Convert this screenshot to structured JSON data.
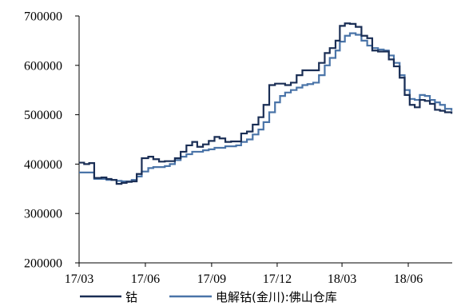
{
  "chart_data": {
    "type": "line",
    "title": "",
    "xlabel": "",
    "ylabel": "",
    "ylim": [
      200000,
      700000
    ],
    "xlim": [
      "2017-03-01",
      "2018-08-01"
    ],
    "grid": false,
    "legend_position": "bottom",
    "y_ticks": [
      {
        "value": 200000,
        "label": "200000"
      },
      {
        "value": 300000,
        "label": "300000"
      },
      {
        "value": 400000,
        "label": "400000"
      },
      {
        "value": 500000,
        "label": "500000"
      },
      {
        "value": 600000,
        "label": "600000"
      },
      {
        "value": 700000,
        "label": "700000"
      }
    ],
    "x_ticks": [
      {
        "value": "2017-03-01",
        "label": "17/03"
      },
      {
        "value": "2017-06-01",
        "label": "17/06"
      },
      {
        "value": "2017-09-01",
        "label": "17/09"
      },
      {
        "value": "2017-12-01",
        "label": "17/12"
      },
      {
        "value": "2018-03-01",
        "label": "18/03"
      },
      {
        "value": "2018-06-01",
        "label": "18/06"
      }
    ],
    "series": [
      {
        "name": "钴",
        "color": "#1a2e55",
        "points": [
          [
            "2017-03-01",
            403000
          ],
          [
            "2017-03-08",
            400000
          ],
          [
            "2017-03-15",
            402000
          ],
          [
            "2017-03-22",
            372000
          ],
          [
            "2017-04-01",
            373000
          ],
          [
            "2017-04-08",
            370000
          ],
          [
            "2017-04-15",
            368000
          ],
          [
            "2017-04-22",
            360000
          ],
          [
            "2017-04-29",
            362000
          ],
          [
            "2017-05-06",
            364000
          ],
          [
            "2017-05-13",
            365000
          ],
          [
            "2017-05-20",
            380000
          ],
          [
            "2017-05-27",
            412000
          ],
          [
            "2017-06-05",
            415000
          ],
          [
            "2017-06-12",
            410000
          ],
          [
            "2017-06-20",
            405000
          ],
          [
            "2017-06-28",
            406000
          ],
          [
            "2017-07-05",
            406000
          ],
          [
            "2017-07-12",
            412000
          ],
          [
            "2017-07-20",
            425000
          ],
          [
            "2017-07-28",
            438000
          ],
          [
            "2017-08-05",
            445000
          ],
          [
            "2017-08-12",
            435000
          ],
          [
            "2017-08-20",
            440000
          ],
          [
            "2017-08-28",
            447000
          ],
          [
            "2017-09-05",
            455000
          ],
          [
            "2017-09-12",
            452000
          ],
          [
            "2017-09-20",
            445000
          ],
          [
            "2017-09-28",
            446000
          ],
          [
            "2017-10-05",
            446000
          ],
          [
            "2017-10-12",
            462000
          ],
          [
            "2017-10-20",
            466000
          ],
          [
            "2017-10-28",
            480000
          ],
          [
            "2017-11-05",
            495000
          ],
          [
            "2017-11-12",
            520000
          ],
          [
            "2017-11-20",
            560000
          ],
          [
            "2017-11-28",
            563000
          ],
          [
            "2017-12-05",
            563000
          ],
          [
            "2017-12-12",
            560000
          ],
          [
            "2017-12-20",
            565000
          ],
          [
            "2017-12-28",
            580000
          ],
          [
            "2018-01-05",
            590000
          ],
          [
            "2018-01-12",
            590000
          ],
          [
            "2018-01-20",
            590000
          ],
          [
            "2018-01-28",
            605000
          ],
          [
            "2018-02-05",
            625000
          ],
          [
            "2018-02-12",
            635000
          ],
          [
            "2018-02-20",
            650000
          ],
          [
            "2018-02-26",
            680000
          ],
          [
            "2018-03-05",
            685000
          ],
          [
            "2018-03-12",
            684000
          ],
          [
            "2018-03-20",
            678000
          ],
          [
            "2018-03-28",
            660000
          ],
          [
            "2018-04-05",
            655000
          ],
          [
            "2018-04-12",
            630000
          ],
          [
            "2018-04-20",
            628000
          ],
          [
            "2018-04-28",
            628000
          ],
          [
            "2018-05-05",
            612000
          ],
          [
            "2018-05-12",
            598000
          ],
          [
            "2018-05-20",
            575000
          ],
          [
            "2018-05-27",
            540000
          ],
          [
            "2018-06-03",
            520000
          ],
          [
            "2018-06-10",
            515000
          ],
          [
            "2018-06-17",
            530000
          ],
          [
            "2018-06-24",
            528000
          ],
          [
            "2018-07-01",
            522000
          ],
          [
            "2018-07-08",
            510000
          ],
          [
            "2018-07-15",
            508000
          ],
          [
            "2018-07-22",
            505000
          ],
          [
            "2018-07-31",
            502000
          ]
        ]
      },
      {
        "name": "电解钴(金川):佛山仓库",
        "color": "#4a74a8",
        "points": [
          [
            "2017-03-01",
            383000
          ],
          [
            "2017-03-08",
            383000
          ],
          [
            "2017-03-15",
            383000
          ],
          [
            "2017-03-22",
            370000
          ],
          [
            "2017-04-01",
            370000
          ],
          [
            "2017-04-08",
            368000
          ],
          [
            "2017-04-15",
            368000
          ],
          [
            "2017-04-22",
            366000
          ],
          [
            "2017-04-29",
            365000
          ],
          [
            "2017-05-06",
            365000
          ],
          [
            "2017-05-13",
            368000
          ],
          [
            "2017-05-20",
            375000
          ],
          [
            "2017-05-27",
            385000
          ],
          [
            "2017-06-05",
            392000
          ],
          [
            "2017-06-12",
            394000
          ],
          [
            "2017-06-20",
            394000
          ],
          [
            "2017-06-28",
            396000
          ],
          [
            "2017-07-05",
            400000
          ],
          [
            "2017-07-12",
            408000
          ],
          [
            "2017-07-20",
            415000
          ],
          [
            "2017-07-28",
            420000
          ],
          [
            "2017-08-05",
            425000
          ],
          [
            "2017-08-12",
            425000
          ],
          [
            "2017-08-20",
            428000
          ],
          [
            "2017-08-28",
            430000
          ],
          [
            "2017-09-05",
            433000
          ],
          [
            "2017-09-12",
            433000
          ],
          [
            "2017-09-20",
            436000
          ],
          [
            "2017-09-28",
            436000
          ],
          [
            "2017-10-05",
            438000
          ],
          [
            "2017-10-12",
            445000
          ],
          [
            "2017-10-20",
            450000
          ],
          [
            "2017-10-28",
            460000
          ],
          [
            "2017-11-05",
            470000
          ],
          [
            "2017-11-12",
            485000
          ],
          [
            "2017-11-20",
            505000
          ],
          [
            "2017-11-28",
            525000
          ],
          [
            "2017-12-05",
            538000
          ],
          [
            "2017-12-12",
            545000
          ],
          [
            "2017-12-20",
            550000
          ],
          [
            "2017-12-28",
            555000
          ],
          [
            "2018-01-05",
            560000
          ],
          [
            "2018-01-12",
            562000
          ],
          [
            "2018-01-20",
            565000
          ],
          [
            "2018-01-28",
            580000
          ],
          [
            "2018-02-05",
            600000
          ],
          [
            "2018-02-12",
            615000
          ],
          [
            "2018-02-20",
            630000
          ],
          [
            "2018-02-26",
            648000
          ],
          [
            "2018-03-05",
            660000
          ],
          [
            "2018-03-12",
            665000
          ],
          [
            "2018-03-20",
            662000
          ],
          [
            "2018-03-28",
            650000
          ],
          [
            "2018-04-05",
            640000
          ],
          [
            "2018-04-12",
            635000
          ],
          [
            "2018-04-20",
            632000
          ],
          [
            "2018-04-28",
            630000
          ],
          [
            "2018-05-05",
            620000
          ],
          [
            "2018-05-12",
            605000
          ],
          [
            "2018-05-20",
            580000
          ],
          [
            "2018-05-27",
            550000
          ],
          [
            "2018-06-03",
            532000
          ],
          [
            "2018-06-10",
            530000
          ],
          [
            "2018-06-17",
            540000
          ],
          [
            "2018-06-24",
            538000
          ],
          [
            "2018-07-01",
            530000
          ],
          [
            "2018-07-08",
            525000
          ],
          [
            "2018-07-15",
            520000
          ],
          [
            "2018-07-22",
            512000
          ],
          [
            "2018-07-31",
            508000
          ]
        ]
      }
    ]
  }
}
